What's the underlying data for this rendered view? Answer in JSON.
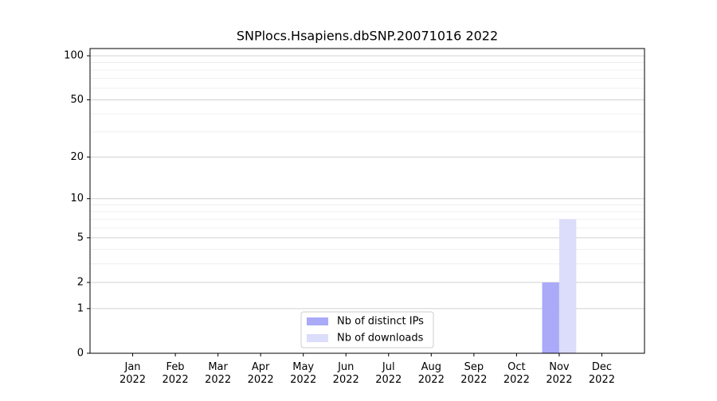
{
  "chart_data": {
    "type": "bar",
    "title": "SNPlocs.Hsapiens.dbSNP.20071016 2022",
    "categories": [
      "Jan\n2022",
      "Feb\n2022",
      "Mar\n2022",
      "Apr\n2022",
      "May\n2022",
      "Jun\n2022",
      "Jul\n2022",
      "Aug\n2022",
      "Sep\n2022",
      "Oct\n2022",
      "Nov\n2022",
      "Dec\n2022"
    ],
    "series": [
      {
        "name": "Nb of distinct IPs",
        "color": "#aaaaf8",
        "values": [
          0,
          0,
          0,
          0,
          0,
          0,
          0,
          0,
          0,
          0,
          2,
          0
        ]
      },
      {
        "name": "Nb of downloads",
        "color": "#dcdcfb",
        "values": [
          0,
          0,
          0,
          0,
          0,
          0,
          0,
          0,
          0,
          0,
          7,
          0
        ]
      }
    ],
    "yscale": "log1p",
    "ylim": [
      0,
      112
    ],
    "yticks": [
      0,
      1,
      2,
      5,
      10,
      20,
      50,
      100
    ],
    "minor_yticks": [
      3,
      4,
      6,
      7,
      8,
      9,
      30,
      40,
      60,
      70,
      80,
      90
    ],
    "grid": true,
    "legend": "lower center"
  }
}
